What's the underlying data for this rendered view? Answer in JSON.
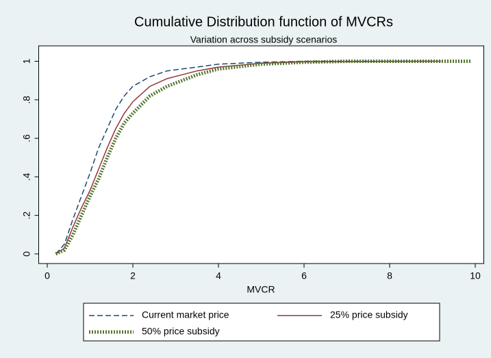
{
  "chart_data": {
    "type": "line",
    "title": "Cumulative Distribution function of MVCRs",
    "subtitle": "Variation across subsidy scenarios",
    "x_label": "MVCR",
    "xlim": [
      -0.2,
      10.2
    ],
    "xticks": [
      0,
      2,
      4,
      6,
      8,
      10
    ],
    "ylim": [
      -0.05,
      1.08
    ],
    "yticks": [
      0,
      {
        "value": 0.2,
        "label": ".2"
      },
      {
        "value": 0.4,
        "label": ".4"
      },
      {
        "value": 0.6,
        "label": ".6"
      },
      {
        "value": 0.8,
        "label": ".8"
      },
      1
    ],
    "grid": false,
    "legend_position": "bottom",
    "series": [
      {
        "name": "Current market price",
        "color": "#1a476f",
        "style": "dashed",
        "x": [
          0.2,
          0.4,
          0.6,
          0.8,
          1.0,
          1.2,
          1.4,
          1.6,
          1.8,
          2.0,
          2.4,
          2.8,
          3.5,
          4,
          5,
          6,
          9
        ],
        "values": [
          0,
          0.05,
          0.18,
          0.3,
          0.42,
          0.55,
          0.65,
          0.75,
          0.82,
          0.87,
          0.92,
          0.95,
          0.97,
          0.985,
          0.995,
          1,
          1
        ]
      },
      {
        "name": "25% price subsidy",
        "color": "#90353b",
        "style": "solid",
        "x": [
          0.2,
          0.4,
          0.6,
          0.8,
          1.0,
          1.2,
          1.4,
          1.6,
          1.8,
          2.0,
          2.4,
          2.8,
          3.5,
          4,
          5,
          6,
          9.2
        ],
        "values": [
          0,
          0.03,
          0.14,
          0.24,
          0.33,
          0.44,
          0.55,
          0.65,
          0.73,
          0.79,
          0.87,
          0.91,
          0.95,
          0.97,
          0.99,
          0.997,
          1
        ]
      },
      {
        "name": "50% price subsidy",
        "color": "#55752f",
        "style": "dotted",
        "x": [
          0.2,
          0.4,
          0.6,
          0.8,
          1.0,
          1.2,
          1.4,
          1.6,
          1.8,
          2.0,
          2.4,
          2.8,
          3.5,
          4,
          5,
          6,
          7,
          9.9
        ],
        "values": [
          0,
          0.02,
          0.1,
          0.2,
          0.3,
          0.39,
          0.5,
          0.6,
          0.68,
          0.73,
          0.82,
          0.87,
          0.93,
          0.96,
          0.985,
          0.995,
          1,
          1
        ]
      }
    ]
  }
}
